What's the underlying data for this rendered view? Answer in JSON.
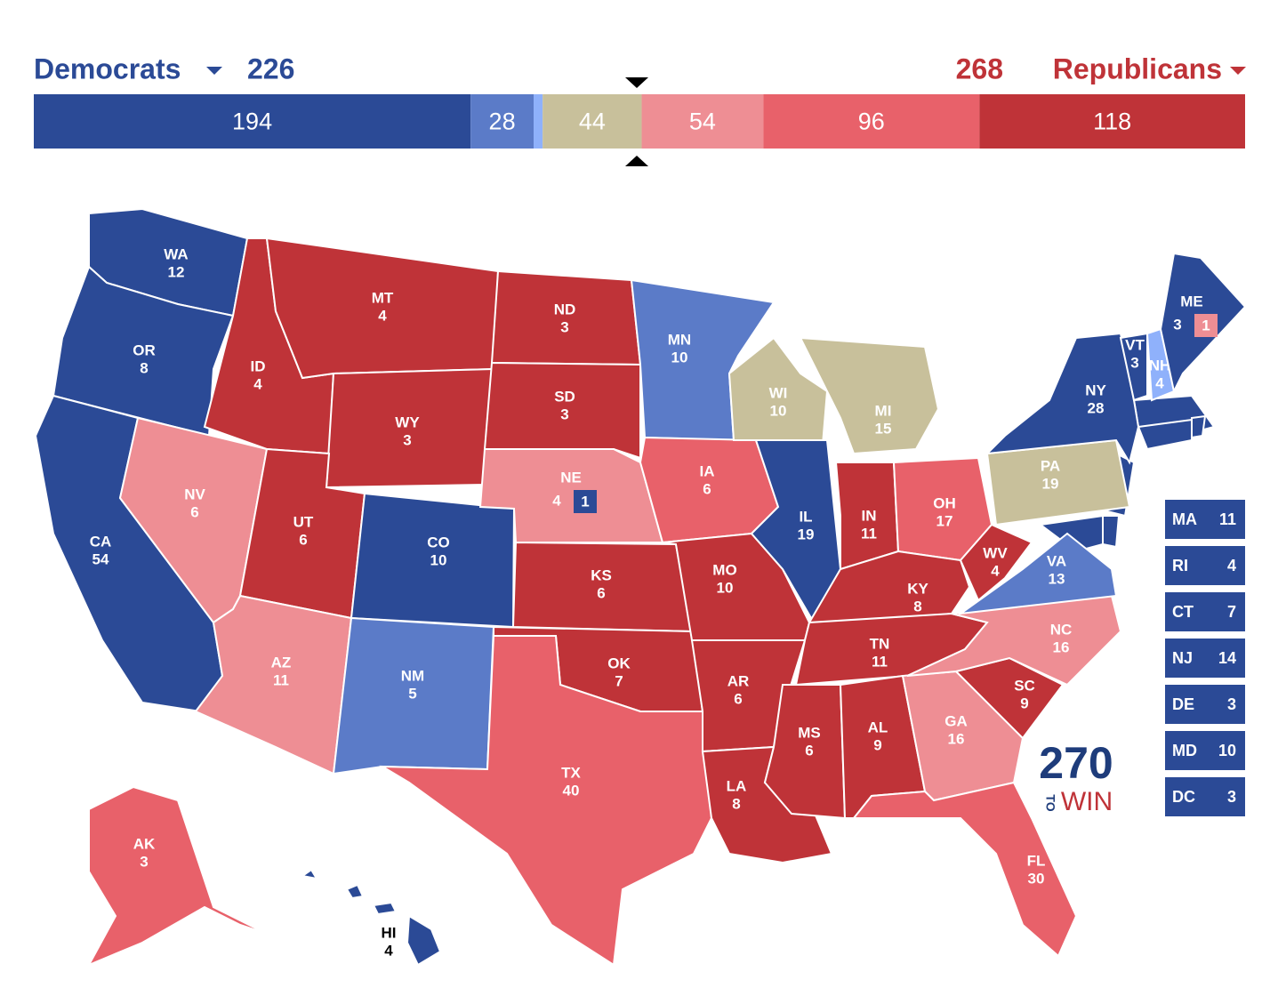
{
  "header": {
    "dem_label": "Democrats",
    "dem_total": 226,
    "dem_color": "#2b4a96",
    "rep_total": 268,
    "rep_label": "Republicans",
    "rep_color": "#bf3338"
  },
  "bar": [
    {
      "value": 194,
      "color": "#2b4a96"
    },
    {
      "value": 28,
      "color": "#5b7bc8"
    },
    {
      "value": 4,
      "color": "#8fb1fb"
    },
    {
      "value": 44,
      "color": "#c8c09b"
    },
    {
      "value": 54,
      "color": "#ee8e94"
    },
    {
      "value": 96,
      "color": "#e8616a"
    },
    {
      "value": 118,
      "color": "#bf3338"
    }
  ],
  "states": [
    {
      "abbr": "WA",
      "ev": 12,
      "color": "#2b4a96"
    },
    {
      "abbr": "OR",
      "ev": 8,
      "color": "#2b4a96"
    },
    {
      "abbr": "CA",
      "ev": 54,
      "color": "#2b4a96"
    },
    {
      "abbr": "NV",
      "ev": 6,
      "color": "#ee8e94"
    },
    {
      "abbr": "ID",
      "ev": 4,
      "color": "#bf3338"
    },
    {
      "abbr": "MT",
      "ev": 4,
      "color": "#bf3338"
    },
    {
      "abbr": "WY",
      "ev": 3,
      "color": "#bf3338"
    },
    {
      "abbr": "UT",
      "ev": 6,
      "color": "#bf3338"
    },
    {
      "abbr": "AZ",
      "ev": 11,
      "color": "#ee8e94"
    },
    {
      "abbr": "CO",
      "ev": 10,
      "color": "#2b4a96"
    },
    {
      "abbr": "NM",
      "ev": 5,
      "color": "#5b7bc8"
    },
    {
      "abbr": "ND",
      "ev": 3,
      "color": "#bf3338"
    },
    {
      "abbr": "SD",
      "ev": 3,
      "color": "#bf3338"
    },
    {
      "abbr": "NE",
      "ev": 4,
      "color": "#ee8e94",
      "district": {
        "ev": 1,
        "color": "#2b4a96"
      }
    },
    {
      "abbr": "KS",
      "ev": 6,
      "color": "#bf3338"
    },
    {
      "abbr": "OK",
      "ev": 7,
      "color": "#bf3338"
    },
    {
      "abbr": "TX",
      "ev": 40,
      "color": "#e8616a"
    },
    {
      "abbr": "MN",
      "ev": 10,
      "color": "#5b7bc8"
    },
    {
      "abbr": "IA",
      "ev": 6,
      "color": "#e8616a"
    },
    {
      "abbr": "MO",
      "ev": 10,
      "color": "#bf3338"
    },
    {
      "abbr": "AR",
      "ev": 6,
      "color": "#bf3338"
    },
    {
      "abbr": "LA",
      "ev": 8,
      "color": "#bf3338"
    },
    {
      "abbr": "WI",
      "ev": 10,
      "color": "#c8c09b"
    },
    {
      "abbr": "IL",
      "ev": 19,
      "color": "#2b4a96"
    },
    {
      "abbr": "MI",
      "ev": 15,
      "color": "#c8c09b"
    },
    {
      "abbr": "IN",
      "ev": 11,
      "color": "#bf3338"
    },
    {
      "abbr": "OH",
      "ev": 17,
      "color": "#e8616a"
    },
    {
      "abbr": "KY",
      "ev": 8,
      "color": "#bf3338"
    },
    {
      "abbr": "TN",
      "ev": 11,
      "color": "#bf3338"
    },
    {
      "abbr": "MS",
      "ev": 6,
      "color": "#bf3338"
    },
    {
      "abbr": "AL",
      "ev": 9,
      "color": "#bf3338"
    },
    {
      "abbr": "GA",
      "ev": 16,
      "color": "#ee8e94"
    },
    {
      "abbr": "FL",
      "ev": 30,
      "color": "#e8616a"
    },
    {
      "abbr": "SC",
      "ev": 9,
      "color": "#bf3338"
    },
    {
      "abbr": "NC",
      "ev": 16,
      "color": "#ee8e94"
    },
    {
      "abbr": "VA",
      "ev": 13,
      "color": "#5b7bc8"
    },
    {
      "abbr": "WV",
      "ev": 4,
      "color": "#bf3338"
    },
    {
      "abbr": "PA",
      "ev": 19,
      "color": "#c8c09b"
    },
    {
      "abbr": "NY",
      "ev": 28,
      "color": "#2b4a96"
    },
    {
      "abbr": "VT",
      "ev": 3,
      "color": "#2b4a96"
    },
    {
      "abbr": "NH",
      "ev": 4,
      "color": "#8fb1fb"
    },
    {
      "abbr": "ME",
      "ev": 3,
      "color": "#2b4a96",
      "district": {
        "ev": 1,
        "color": "#ee8e94"
      }
    },
    {
      "abbr": "AK",
      "ev": 3,
      "color": "#e8616a"
    },
    {
      "abbr": "HI",
      "ev": 4,
      "color": "#2b4a96"
    }
  ],
  "small_states": [
    {
      "abbr": "MA",
      "ev": 11,
      "color": "#2b4a96"
    },
    {
      "abbr": "RI",
      "ev": 4,
      "color": "#2b4a96"
    },
    {
      "abbr": "CT",
      "ev": 7,
      "color": "#2b4a96"
    },
    {
      "abbr": "NJ",
      "ev": 14,
      "color": "#2b4a96"
    },
    {
      "abbr": "DE",
      "ev": 3,
      "color": "#2b4a96"
    },
    {
      "abbr": "MD",
      "ev": 10,
      "color": "#2b4a96"
    },
    {
      "abbr": "DC",
      "ev": 3,
      "color": "#2b4a96"
    }
  ],
  "logo": {
    "number": "270",
    "to": "TO",
    "win": "WIN"
  }
}
